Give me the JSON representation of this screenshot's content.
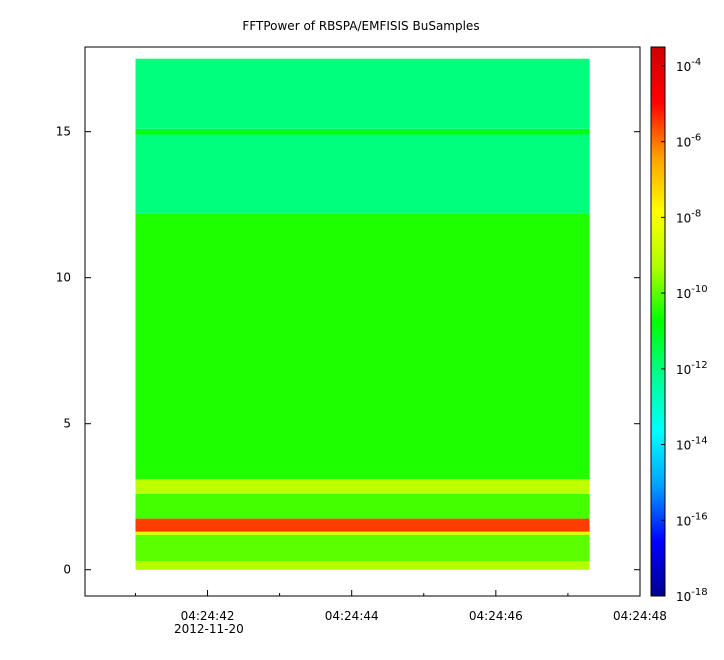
{
  "chart_data": {
    "type": "heatmap",
    "title": "FFTPower of RBSPA/EMFISIS  BuSamples",
    "xlabel": "",
    "ylabel": "",
    "x_axis": {
      "ticks": [
        "04:24:42",
        "04:24:44",
        "04:24:46",
        "04:24:48"
      ],
      "date_label": "2012-11-20",
      "range": [
        "04:24:40.3",
        "04:24:48.0"
      ]
    },
    "y_axis": {
      "ticks": [
        "0",
        "5",
        "10",
        "15"
      ],
      "range": [
        -0.9,
        17.9
      ]
    },
    "data_extent": {
      "time": [
        "04:24:41.0",
        "04:24:47.3"
      ],
      "frequency": [
        0,
        17.5
      ]
    },
    "colorbar": {
      "scale": "log",
      "range": [
        "1e-18",
        "1e-3.5"
      ],
      "ticks": [
        {
          "base": "10",
          "exp": "-4"
        },
        {
          "base": "10",
          "exp": "-6"
        },
        {
          "base": "10",
          "exp": "-8"
        },
        {
          "base": "10",
          "exp": "-10"
        },
        {
          "base": "10",
          "exp": "-12"
        },
        {
          "base": "10",
          "exp": "-14"
        },
        {
          "base": "10",
          "exp": "-16"
        },
        {
          "base": "10",
          "exp": "-18"
        }
      ],
      "colormap": [
        "#00008f",
        "#0000ff",
        "#00a0ff",
        "#00ffff",
        "#00ff90",
        "#00ff00",
        "#b0ff00",
        "#ffff00",
        "#ffa000",
        "#ff0000",
        "#d00000"
      ]
    },
    "bands": [
      {
        "freq_range": [
          0.0,
          0.3
        ],
        "log_power": -9.2
      },
      {
        "freq_range": [
          0.3,
          1.2
        ],
        "log_power": -10.0
      },
      {
        "freq_range": [
          1.2,
          1.3
        ],
        "log_power": -8.5
      },
      {
        "freq_range": [
          1.3,
          1.75
        ],
        "log_power": -5.5
      },
      {
        "freq_range": [
          1.75,
          2.6
        ],
        "log_power": -10.2
      },
      {
        "freq_range": [
          2.6,
          3.1
        ],
        "log_power": -9.0
      },
      {
        "freq_range": [
          3.1,
          12.2
        ],
        "log_power": -10.5
      },
      {
        "freq_range": [
          12.2,
          14.9
        ],
        "log_power": -12.0
      },
      {
        "freq_range": [
          14.9,
          15.1
        ],
        "log_power": -11.0
      },
      {
        "freq_range": [
          15.1,
          17.5
        ],
        "log_power": -12.0
      }
    ],
    "grid": false,
    "legend": "colorbar-right"
  }
}
